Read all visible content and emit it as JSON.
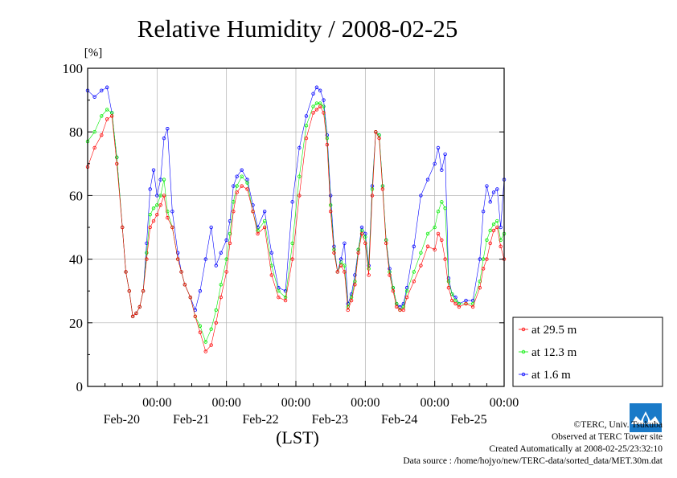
{
  "chart_data": {
    "type": "line",
    "title": "Relative Humidity / 2008-02-25",
    "ylabel": "[%]",
    "xlabel": "(LST)",
    "ylim": [
      0,
      100
    ],
    "yticks": [
      0,
      20,
      40,
      60,
      80,
      100
    ],
    "xlim": [
      0,
      6
    ],
    "x_unit": "days since 2008-02-19 00:00 LST",
    "xticks": [
      {
        "time": "00:00",
        "date": "Feb-20"
      },
      {
        "time": "00:00",
        "date": "Feb-21"
      },
      {
        "time": "00:00",
        "date": "Feb-22"
      },
      {
        "time": "00:00",
        "date": "Feb-23"
      },
      {
        "time": "00:00",
        "date": "Feb-24"
      },
      {
        "time": "00:00",
        "date": "Feb-25"
      }
    ],
    "grid": true,
    "legend_position": "bottom-right-outside",
    "series": [
      {
        "name": "at 29.5 m",
        "color": "#ff0000",
        "x": [
          0.0,
          0.1,
          0.2,
          0.28,
          0.35,
          0.42,
          0.5,
          0.55,
          0.6,
          0.65,
          0.7,
          0.75,
          0.8,
          0.85,
          0.9,
          0.95,
          1.0,
          1.05,
          1.1,
          1.15,
          1.22,
          1.3,
          1.35,
          1.4,
          1.48,
          1.55,
          1.62,
          1.7,
          1.78,
          1.85,
          1.92,
          2.0,
          2.05,
          2.1,
          2.15,
          2.22,
          2.3,
          2.38,
          2.45,
          2.55,
          2.65,
          2.75,
          2.85,
          2.95,
          3.05,
          3.15,
          3.25,
          3.3,
          3.35,
          3.4,
          3.45,
          3.5,
          3.55,
          3.6,
          3.65,
          3.7,
          3.75,
          3.8,
          3.85,
          3.9,
          3.95,
          4.0,
          4.05,
          4.1,
          4.15,
          4.2,
          4.25,
          4.3,
          4.35,
          4.4,
          4.45,
          4.5,
          4.55,
          4.6,
          4.7,
          4.8,
          4.9,
          5.0,
          5.05,
          5.1,
          5.15,
          5.2,
          5.25,
          5.3,
          5.35,
          5.45,
          5.55,
          5.65,
          5.7,
          5.75,
          5.8,
          5.85,
          5.9,
          5.95,
          6.0
        ],
        "y": [
          69,
          75,
          79,
          84,
          85,
          70,
          50,
          36,
          30,
          22,
          23,
          25,
          30,
          40,
          50,
          52,
          54,
          57,
          60,
          53,
          50,
          40,
          36,
          32,
          28,
          22,
          17,
          11,
          13,
          20,
          28,
          36,
          45,
          55,
          61,
          63,
          62,
          55,
          48,
          50,
          35,
          28,
          27,
          40,
          60,
          78,
          86,
          87,
          88,
          86,
          76,
          55,
          42,
          36,
          38,
          36,
          24,
          27,
          32,
          42,
          48,
          45,
          35,
          60,
          80,
          78,
          62,
          45,
          35,
          30,
          25,
          24,
          24,
          28,
          33,
          38,
          44,
          43,
          48,
          46,
          40,
          31,
          27,
          26,
          25,
          26,
          25,
          31,
          37,
          40,
          45,
          49,
          50,
          44,
          40
        ]
      },
      {
        "name": "at 12.3 m",
        "color": "#00ee00",
        "x": [
          0.0,
          0.1,
          0.2,
          0.28,
          0.35,
          0.42,
          0.5,
          0.55,
          0.6,
          0.65,
          0.7,
          0.75,
          0.8,
          0.85,
          0.9,
          0.95,
          1.0,
          1.05,
          1.1,
          1.15,
          1.22,
          1.3,
          1.35,
          1.4,
          1.48,
          1.55,
          1.62,
          1.7,
          1.78,
          1.85,
          1.92,
          2.0,
          2.05,
          2.1,
          2.15,
          2.22,
          2.3,
          2.38,
          2.45,
          2.55,
          2.65,
          2.75,
          2.85,
          2.95,
          3.05,
          3.15,
          3.25,
          3.3,
          3.35,
          3.4,
          3.45,
          3.5,
          3.55,
          3.6,
          3.65,
          3.7,
          3.75,
          3.8,
          3.85,
          3.9,
          3.95,
          4.0,
          4.05,
          4.1,
          4.15,
          4.2,
          4.25,
          4.3,
          4.35,
          4.4,
          4.45,
          4.5,
          4.55,
          4.6,
          4.7,
          4.8,
          4.9,
          5.0,
          5.05,
          5.1,
          5.15,
          5.2,
          5.25,
          5.3,
          5.35,
          5.45,
          5.55,
          5.65,
          5.7,
          5.75,
          5.8,
          5.85,
          5.9,
          5.95,
          6.0
        ],
        "y": [
          77,
          80,
          85,
          87,
          86,
          72,
          50,
          36,
          30,
          22,
          23,
          25,
          30,
          42,
          54,
          56,
          57,
          60,
          65,
          55,
          50,
          40,
          36,
          32,
          28,
          22,
          19,
          14,
          18,
          24,
          32,
          40,
          48,
          58,
          63,
          66,
          64,
          55,
          49,
          52,
          38,
          30,
          28,
          45,
          66,
          82,
          88,
          89,
          89,
          88,
          78,
          57,
          43,
          36,
          39,
          38,
          25,
          28,
          33,
          43,
          49,
          47,
          37,
          62,
          80,
          79,
          63,
          46,
          36,
          31,
          26,
          24,
          25,
          30,
          36,
          42,
          48,
          50,
          55,
          58,
          56,
          33,
          29,
          27,
          26,
          26,
          26,
          33,
          40,
          46,
          49,
          51,
          52,
          46,
          48
        ]
      },
      {
        "name": "at 1.6 m",
        "color": "#0000ff",
        "x": [
          0.0,
          0.1,
          0.2,
          0.28,
          0.35,
          0.42,
          0.5,
          0.55,
          0.6,
          0.65,
          0.7,
          0.75,
          0.8,
          0.85,
          0.9,
          0.95,
          1.0,
          1.05,
          1.1,
          1.15,
          1.22,
          1.3,
          1.35,
          1.4,
          1.48,
          1.55,
          1.62,
          1.7,
          1.78,
          1.85,
          1.92,
          2.0,
          2.05,
          2.1,
          2.15,
          2.22,
          2.3,
          2.38,
          2.45,
          2.55,
          2.65,
          2.75,
          2.85,
          2.95,
          3.05,
          3.15,
          3.25,
          3.3,
          3.35,
          3.4,
          3.45,
          3.5,
          3.55,
          3.6,
          3.65,
          3.7,
          3.75,
          3.8,
          3.85,
          3.9,
          3.95,
          4.0,
          4.05,
          4.1,
          4.15,
          4.2,
          4.25,
          4.3,
          4.35,
          4.4,
          4.45,
          4.5,
          4.55,
          4.6,
          4.7,
          4.8,
          4.9,
          5.0,
          5.05,
          5.1,
          5.15,
          5.2,
          5.25,
          5.3,
          5.35,
          5.45,
          5.55,
          5.65,
          5.7,
          5.75,
          5.8,
          5.85,
          5.9,
          5.95,
          6.0
        ],
        "y": [
          93,
          91,
          93,
          94,
          86,
          72,
          50,
          36,
          30,
          22,
          23,
          25,
          30,
          45,
          62,
          68,
          60,
          65,
          78,
          81,
          55,
          42,
          36,
          32,
          28,
          24,
          30,
          40,
          50,
          38,
          42,
          46,
          52,
          63,
          66,
          68,
          65,
          57,
          50,
          55,
          42,
          31,
          30,
          58,
          75,
          85,
          92,
          94,
          93,
          90,
          79,
          60,
          44,
          36,
          40,
          45,
          26,
          29,
          35,
          43,
          50,
          48,
          38,
          63,
          80,
          79,
          63,
          46,
          37,
          31,
          26,
          25,
          26,
          31,
          44,
          60,
          65,
          70,
          75,
          68,
          73,
          34,
          29,
          28,
          26,
          27,
          27,
          40,
          55,
          63,
          58,
          61,
          62,
          50,
          65
        ]
      }
    ]
  },
  "credits": {
    "copyright": "©TERC, Univ. Tsukuba",
    "observed": "Observed at TERC Tower site",
    "created": "Created Automatically at 2008-02-25/23:32:10",
    "source": "Data source : /home/hojyo/new/TERC-data/sorted_data/MET.30m.dat",
    "logo_text": "TERC"
  }
}
